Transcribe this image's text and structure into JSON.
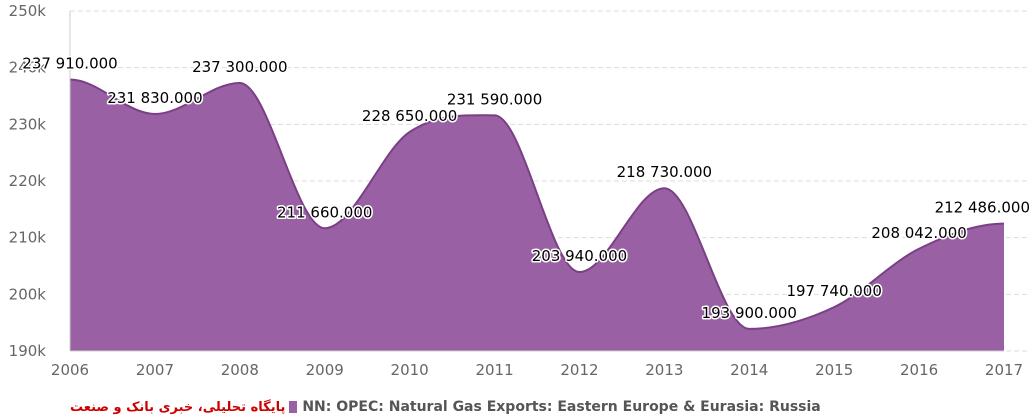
{
  "chart_data": {
    "type": "area",
    "x": [
      "2006",
      "2007",
      "2008",
      "2009",
      "2010",
      "2011",
      "2012",
      "2013",
      "2014",
      "2015",
      "2016",
      "2017"
    ],
    "series": [
      {
        "name": "NN: OPEC: Natural Gas Exports: Eastern Europe & Eurasia: Russia",
        "values": [
          237910,
          231830,
          237300,
          211660,
          228650,
          231590,
          203940,
          218730,
          193900,
          197740,
          208042,
          212486
        ],
        "labels": [
          "237 910.000",
          "231 830.000",
          "237 300.000",
          "211 660.000",
          "228 650.000",
          "231 590.000",
          "203 940.000",
          "218 730.000",
          "193 900.000",
          "197 740.000",
          "208 042.000",
          "212 486.000"
        ]
      }
    ],
    "ylim": [
      190000,
      250000
    ],
    "yticks": [
      190000,
      200000,
      210000,
      220000,
      230000,
      240000,
      250000
    ],
    "ytick_labels": [
      "190k",
      "200k",
      "210k",
      "220k",
      "230k",
      "240k",
      "250k"
    ],
    "grid": true,
    "legend": "bottom-left",
    "colors": {
      "fill": "#9960a4",
      "line": "#7b3f86",
      "grid": "#dddddd"
    }
  },
  "watermark": "پایگاه تحلیلی، خبری بانک و صنعت"
}
